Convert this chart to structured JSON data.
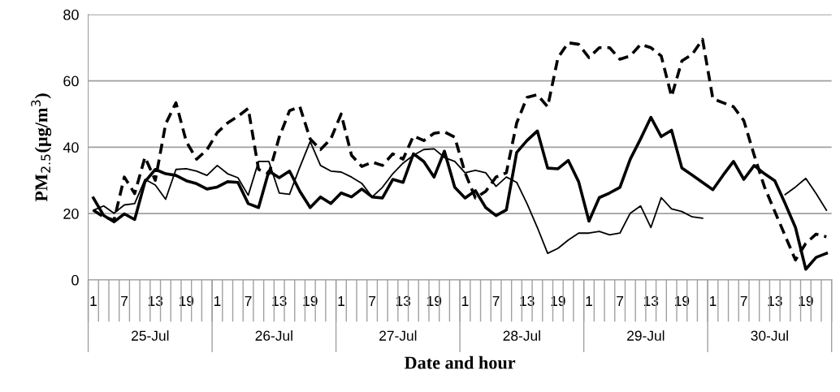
{
  "chart_data": {
    "type": "line",
    "ylabel": "PM$_{2.5}$(µg/m$^{3}$)",
    "xlabel": "Date and hour",
    "categories": [
      "1",
      null,
      null,
      "7",
      null,
      null,
      "13",
      null,
      null,
      "19",
      null,
      null,
      "1",
      null,
      null,
      "7",
      null,
      null,
      "13",
      null,
      null,
      "19",
      null,
      null,
      "1",
      null,
      null,
      "7",
      null,
      null,
      "13",
      null,
      null,
      "19",
      null,
      null,
      "1",
      null,
      null,
      "7",
      null,
      null,
      "13",
      null,
      null,
      "19",
      null,
      null,
      "1",
      null,
      null,
      "7",
      null,
      null,
      "13",
      null,
      null,
      "19",
      null,
      null,
      "1",
      null,
      null,
      "7",
      null,
      null,
      "13",
      null,
      null,
      "19",
      null,
      null
    ],
    "annotations": [
      "25-Jul",
      "26-Jul",
      "27-Jul",
      "28-Jul",
      "29-Jul",
      "30-Jul"
    ],
    "ylim": [
      0,
      80
    ],
    "yticks": [
      0,
      20,
      40,
      60,
      80
    ],
    "grid": "y",
    "legend": false,
    "series": [
      {
        "color": "#000000",
        "line_style": "dashed",
        "values": [
          21,
          19,
          18,
          31,
          26,
          37,
          30,
          47,
          53.4,
          41.7,
          36.4,
          39.2,
          44.4,
          47.3,
          49.3,
          51.7,
          33.3,
          32,
          43,
          51,
          52.2,
          42.5,
          39.3,
          42.5,
          50,
          37.6,
          34.2,
          35.5,
          34.5,
          38,
          36.4,
          43.4,
          42,
          44.2,
          44.6,
          43,
          32.3,
          24.7,
          26.7,
          31,
          32.3,
          47.3,
          55,
          55.8,
          52.2,
          67,
          71.5,
          71,
          67,
          70,
          70,
          66.5,
          67.5,
          71,
          70,
          67.5,
          55.3,
          66,
          68,
          72.5,
          54.6,
          53.4,
          52.2,
          48,
          37.6,
          28,
          20.6,
          13.3,
          6,
          11,
          13.8,
          13
        ]
      },
      {
        "color": "#000000",
        "line_style": "solid",
        "values": [
          24.7,
          19.4,
          17.5,
          19.9,
          18.2,
          29.6,
          33.3,
          32,
          31.5,
          29.9,
          29,
          27.4,
          28,
          29.6,
          29.4,
          23,
          21.8,
          32.8,
          30.8,
          32.8,
          26.7,
          21.8,
          25,
          23,
          26.2,
          25,
          27.4,
          25,
          24.7,
          30.3,
          29.4,
          38,
          35.7,
          31,
          38.8,
          27.9,
          24.7,
          26.9,
          21.8,
          19.4,
          21.1,
          38.4,
          42,
          44.9,
          33.7,
          33.5,
          36,
          29.6,
          17.7,
          24.8,
          26.2,
          27.9,
          36.4,
          42.5,
          49,
          43.2,
          45.1,
          33.7,
          31.6,
          29.4,
          27.2,
          31.6,
          35.7,
          30.3,
          34.5,
          32,
          29.9,
          23,
          15.8,
          3.2,
          6.8,
          8
        ]
      },
      {
        "color": "#000000",
        "line_style": "solid",
        "values": [
          21,
          22.3,
          20.1,
          22.6,
          23,
          30.3,
          28.6,
          24.3,
          33.3,
          33.5,
          32.8,
          31.5,
          34.5,
          32,
          30.8,
          25.5,
          35.7,
          35.7,
          26.2,
          25.8,
          34,
          41.7,
          34.5,
          32.8,
          32.5,
          31,
          29.1,
          25,
          27.9,
          32,
          35.2,
          37.6,
          39.3,
          39.5,
          36.9,
          35.7,
          32.3,
          33,
          32.3,
          28.2,
          31,
          29.4,
          23,
          15.8,
          8,
          9.5,
          12,
          14.1,
          14.1,
          14.6,
          13.6,
          14.1,
          20.1,
          22.3,
          15.8,
          24.8,
          21.4,
          20.6,
          19,
          18.6,
          null,
          null,
          null,
          null,
          null,
          null,
          null,
          25.7,
          28,
          30.6,
          26,
          21
        ]
      }
    ]
  }
}
